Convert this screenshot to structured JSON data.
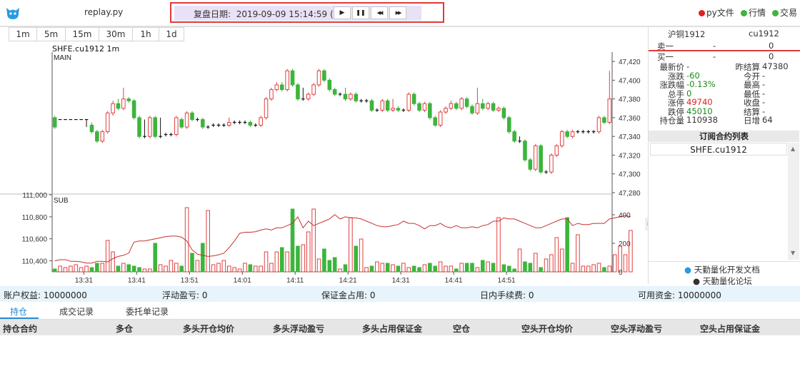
{
  "header": {
    "app_title": "replay.py",
    "replay_label": "复盘日期:",
    "replay_datetime": "2019-09-09 15:14:59 (-)",
    "buttons": [
      {
        "icon": "play-icon",
        "glyph": "▶"
      },
      {
        "icon": "pause-icon",
        "glyph": "❚❚"
      },
      {
        "icon": "rewind-icon",
        "glyph": "◀◀"
      },
      {
        "icon": "fast-forward-icon",
        "glyph": "▶▶"
      }
    ],
    "legend": [
      {
        "label": "py文件",
        "color": "#e02020"
      },
      {
        "label": "行情",
        "color": "#3cb53c"
      },
      {
        "label": "交易",
        "color": "#3cb53c"
      }
    ]
  },
  "periods": [
    "1m",
    "5m",
    "15m",
    "30m",
    "1h",
    "1d"
  ],
  "chart": {
    "title": "SHFE.cu1912 1m",
    "main_label": "MAIN",
    "sub_label": "SUB",
    "price_ticks": [
      "47,420",
      "47,400",
      "47,380",
      "47,360",
      "47,340",
      "47,320",
      "47,300",
      "47,280"
    ],
    "left_ticks": [
      "111,000",
      "110,800",
      "110,600",
      "110,400"
    ],
    "volume_ticks": [
      "400",
      "200",
      "0"
    ],
    "time_ticks": [
      "13:31",
      "13:41",
      "13:51",
      "14:01",
      "14:11",
      "14:21",
      "14:31",
      "14:41",
      "14:51"
    ]
  },
  "chart_data": {
    "type": "candlestick",
    "symbol": "SHFE.cu1912",
    "period": "1m",
    "price_range": [
      47280,
      47430
    ],
    "bars": [
      [
        47360,
        47350,
        47362,
        47348
      ],
      [
        47358,
        47358,
        47358,
        47358
      ],
      [
        47358,
        47358,
        47358,
        47358
      ],
      [
        47358,
        47358,
        47358,
        47358
      ],
      [
        47358,
        47358,
        47358,
        47358
      ],
      [
        47358,
        47358,
        47358,
        47358
      ],
      [
        47358,
        47358,
        47358,
        47350
      ],
      [
        47352,
        47345,
        47355,
        47343
      ],
      [
        47345,
        47335,
        47347,
        47333
      ],
      [
        47335,
        47345,
        47347,
        47333
      ],
      [
        47345,
        47365,
        47367,
        47343
      ],
      [
        47365,
        47375,
        47378,
        47362
      ],
      [
        47375,
        47370,
        47380,
        47368
      ],
      [
        47370,
        47380,
        47392,
        47368
      ],
      [
        47380,
        47378,
        47382,
        47376
      ],
      [
        47378,
        47360,
        47380,
        47358
      ],
      [
        47360,
        47340,
        47362,
        47338
      ],
      [
        47340,
        47340,
        47358,
        47338
      ],
      [
        47340,
        47360,
        47362,
        47338
      ],
      [
        47360,
        47340,
        47362,
        47338
      ],
      [
        47340,
        47340,
        47360,
        47338
      ],
      [
        47342,
        47342,
        47344,
        47340
      ],
      [
        47342,
        47342,
        47344,
        47340
      ],
      [
        47342,
        47360,
        47362,
        47340
      ],
      [
        47358,
        47350,
        47360,
        47348
      ],
      [
        47350,
        47365,
        47367,
        47348
      ],
      [
        47365,
        47358,
        47367,
        47356
      ],
      [
        47358,
        47358,
        47360,
        47356
      ],
      [
        47358,
        47350,
        47360,
        47348
      ],
      [
        47350,
        47350,
        47352,
        47348
      ],
      [
        47352,
        47352,
        47354,
        47350
      ],
      [
        47352,
        47352,
        47354,
        47350
      ],
      [
        47352,
        47352,
        47354,
        47350
      ],
      [
        47352,
        47355,
        47360,
        47350
      ],
      [
        47355,
        47355,
        47357,
        47353
      ],
      [
        47355,
        47355,
        47357,
        47353
      ],
      [
        47355,
        47355,
        47357,
        47353
      ],
      [
        47355,
        47352,
        47357,
        47350
      ],
      [
        47352,
        47352,
        47354,
        47350
      ],
      [
        47352,
        47360,
        47362,
        47350
      ],
      [
        47360,
        47380,
        47382,
        47358
      ],
      [
        47380,
        47390,
        47392,
        47378
      ],
      [
        47390,
        47395,
        47398,
        47388
      ],
      [
        47395,
        47390,
        47398,
        47388
      ],
      [
        47390,
        47410,
        47412,
        47388
      ],
      [
        47410,
        47395,
        47412,
        47393
      ],
      [
        47395,
        47380,
        47397,
        47378
      ],
      [
        47380,
        47380,
        47392,
        47378
      ],
      [
        47380,
        47385,
        47387,
        47378
      ],
      [
        47385,
        47395,
        47397,
        47383
      ],
      [
        47395,
        47410,
        47412,
        47393
      ],
      [
        47410,
        47400,
        47412,
        47398
      ],
      [
        47400,
        47390,
        47402,
        47388
      ],
      [
        47390,
        47385,
        47392,
        47383
      ],
      [
        47385,
        47385,
        47387,
        47383
      ],
      [
        47385,
        47380,
        47392,
        47378
      ],
      [
        47380,
        47385,
        47387,
        47378
      ],
      [
        47385,
        47378,
        47387,
        47376
      ],
      [
        47378,
        47378,
        47380,
        47376
      ],
      [
        47378,
        47378,
        47380,
        47376
      ],
      [
        47378,
        47368,
        47380,
        47366
      ],
      [
        47368,
        47368,
        47370,
        47366
      ],
      [
        47368,
        47378,
        47380,
        47366
      ],
      [
        47378,
        47368,
        47380,
        47366
      ],
      [
        47368,
        47370,
        47380,
        47366
      ],
      [
        47370,
        47368,
        47372,
        47366
      ],
      [
        47368,
        47368,
        47370,
        47366
      ],
      [
        47368,
        47385,
        47387,
        47366
      ],
      [
        47385,
        47375,
        47387,
        47373
      ],
      [
        47375,
        47368,
        47377,
        47366
      ],
      [
        47368,
        47375,
        47377,
        47366
      ],
      [
        47375,
        47360,
        47377,
        47358
      ],
      [
        47360,
        47352,
        47362,
        47350
      ],
      [
        47352,
        47366,
        47368,
        47350
      ],
      [
        47366,
        47370,
        47372,
        47364
      ],
      [
        47370,
        47375,
        47378,
        47368
      ],
      [
        47375,
        47370,
        47377,
        47368
      ],
      [
        47370,
        47380,
        47382,
        47368
      ],
      [
        47380,
        47372,
        47382,
        47370
      ],
      [
        47372,
        47365,
        47374,
        47363
      ],
      [
        47365,
        47375,
        47392,
        47363
      ],
      [
        47375,
        47370,
        47380,
        47368
      ],
      [
        47370,
        47375,
        47377,
        47368
      ],
      [
        47375,
        47368,
        47377,
        47366
      ],
      [
        47368,
        47370,
        47372,
        47366
      ],
      [
        47370,
        47360,
        47372,
        47358
      ],
      [
        47360,
        47345,
        47362,
        47343
      ],
      [
        47345,
        47335,
        47347,
        47333
      ],
      [
        47335,
        47335,
        47340,
        47333
      ],
      [
        47335,
        47315,
        47337,
        47313
      ],
      [
        47315,
        47305,
        47317,
        47303
      ],
      [
        47305,
        47330,
        47332,
        47303
      ],
      [
        47330,
        47302,
        47332,
        47300
      ],
      [
        47302,
        47302,
        47304,
        47300
      ],
      [
        47302,
        47320,
        47322,
        47300
      ],
      [
        47320,
        47330,
        47332,
        47318
      ],
      [
        47330,
        47345,
        47347,
        47328
      ],
      [
        47345,
        47340,
        47347,
        47338
      ],
      [
        47340,
        47345,
        47347,
        47338
      ],
      [
        47345,
        47345,
        47347,
        47343
      ],
      [
        47345,
        47345,
        47347,
        47343
      ],
      [
        47345,
        47345,
        47347,
        47343
      ],
      [
        47345,
        47345,
        47347,
        47343
      ],
      [
        47345,
        47360,
        47362,
        47343
      ],
      [
        47360,
        47355,
        47362,
        47353
      ],
      [
        47355,
        47380,
        47410,
        47353
      ]
    ],
    "volume_range": [
      0,
      500
    ],
    "volumes": [
      20,
      40,
      30,
      40,
      50,
      30,
      40,
      30,
      60,
      60,
      220,
      140,
      40,
      60,
      50,
      40,
      30,
      20,
      20,
      200,
      50,
      40,
      80,
      60,
      40,
      450,
      130,
      80,
      200,
      430,
      50,
      60,
      80,
      40,
      30,
      20,
      60,
      50,
      40,
      40,
      140,
      60,
      140,
      170,
      140,
      440,
      180,
      190,
      280,
      440,
      90,
      160,
      80,
      100,
      20,
      50,
      380,
      180,
      230,
      30,
      40,
      70,
      60,
      60,
      50,
      40,
      60,
      30,
      40,
      30,
      50,
      60,
      40,
      70,
      40,
      40,
      20,
      60,
      60,
      60,
      30,
      80,
      70,
      60,
      380,
      50,
      40,
      20,
      160,
      70,
      60,
      130,
      30,
      90,
      120,
      240,
      160,
      380,
      60,
      260,
      40,
      40,
      50,
      60,
      30,
      40,
      120,
      180,
      120,
      290
    ],
    "left_axis_range": [
      110300,
      111000
    ],
    "line": [
      110400,
      110410,
      110410,
      110395,
      110395,
      110390,
      110380,
      110380,
      110395,
      110395,
      110390,
      110420,
      110440,
      110450,
      110470,
      110570,
      110580,
      110580,
      110590,
      110600,
      110610,
      110620,
      110625,
      110625,
      110615,
      110580,
      110500,
      110460,
      110450,
      110440,
      110445,
      110455,
      110470,
      110520,
      110580,
      110650,
      110660,
      110660,
      110665,
      110680,
      110690,
      110680,
      110700,
      110700,
      110720,
      110740,
      110800,
      110700,
      110760,
      110720,
      110740,
      110760,
      110780,
      110820,
      110780,
      110800,
      110790,
      110790,
      110780,
      110760,
      110740,
      110720,
      110710,
      110710,
      110720,
      110730,
      110760,
      110740,
      110740,
      110720,
      110690,
      110720,
      110720,
      110740,
      110710,
      110700,
      110720,
      110700,
      110700,
      110710,
      110700,
      110720,
      110730,
      110760,
      110760,
      110790,
      110780,
      110780,
      110760,
      110740,
      110720,
      110700,
      110700,
      110720,
      110740,
      110760,
      110780,
      110780,
      110720,
      110740,
      110730,
      110730,
      110740,
      110740,
      110740,
      110780,
      110790,
      110800,
      110810,
      110800
    ]
  },
  "right_panel": {
    "name_cn": "沪铜1912",
    "code": "cu1912",
    "ask_label": "卖一",
    "ask_price": "-",
    "ask_vol": "0",
    "bid_label": "买一",
    "bid_price": "-",
    "bid_vol": "0",
    "rows_left": [
      {
        "label": "最新价",
        "value": "-",
        "cls": ""
      },
      {
        "label": "涨跌",
        "value": "-60",
        "cls": "green"
      },
      {
        "label": "涨跌幅",
        "value": "-0.13%",
        "cls": "green"
      },
      {
        "label": "总手",
        "value": "0",
        "cls": "green"
      },
      {
        "label": "涨停",
        "value": "49740",
        "cls": "red"
      },
      {
        "label": "跌停",
        "value": "45010",
        "cls": "green"
      },
      {
        "label": "持仓量",
        "value": "110938",
        "cls": ""
      }
    ],
    "rows_right": [
      {
        "label": "昨结算",
        "value": "47380"
      },
      {
        "label": "今开",
        "value": "-"
      },
      {
        "label": "最高",
        "value": "-"
      },
      {
        "label": "最低",
        "value": "-"
      },
      {
        "label": "收盘",
        "value": "-"
      },
      {
        "label": "结算",
        "value": "-"
      },
      {
        "label": "日增",
        "value": "64"
      }
    ],
    "subscribe_header": "订阅合约列表",
    "subscribe_items": [
      "SHFE.cu1912"
    ],
    "links": [
      "天勤量化开发文档",
      "天勤量化论坛"
    ]
  },
  "account": {
    "equity": "账户权益: 10000000",
    "float_pnl": "浮动盈亏: 0",
    "margin": "保证金占用: 0",
    "fee": "日内手续费: 0",
    "available": "可用资金: 10000000"
  },
  "tabs": [
    "持仓",
    "成交记录",
    "委托单记录"
  ],
  "position_table": {
    "headers": [
      "持仓合约",
      "多仓",
      "多头开仓均价",
      "多头浮动盈亏",
      "多头占用保证金",
      "空仓",
      "空头开仓均价",
      "空头浮动盈亏",
      "空头占用保证金"
    ]
  }
}
